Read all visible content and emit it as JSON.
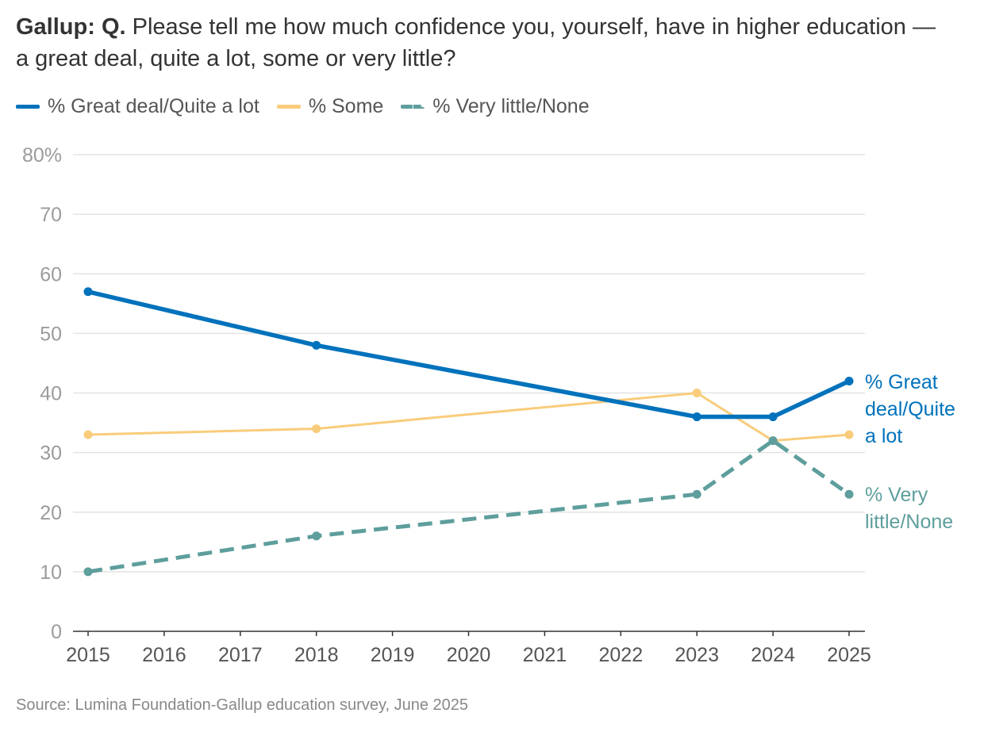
{
  "title": {
    "prefix": "Gallup: Q.",
    "text": "Please tell me how much confidence you, yourself, have in higher education — a great deal, quite a lot, some or very little?"
  },
  "legend": [
    {
      "label": "% Great deal/Quite a lot",
      "color": "#0072bc",
      "style": "solid"
    },
    {
      "label": "% Some",
      "color": "#f9cc7c",
      "style": "solid"
    },
    {
      "label": "% Very little/None",
      "color": "#5e9e9c",
      "style": "dashed"
    }
  ],
  "source": "Source: Lumina Foundation-Gallup education survey, June 2025",
  "chart_data": {
    "type": "line",
    "title": "Gallup: Q. Please tell me how much confidence you, yourself, have in higher education — a great deal, quite a lot, some or very little?",
    "xlabel": "",
    "ylabel": "",
    "xlim": [
      2015,
      2025
    ],
    "ylim": [
      0,
      80
    ],
    "x_ticks": [
      2015,
      2016,
      2017,
      2018,
      2019,
      2020,
      2021,
      2022,
      2023,
      2024,
      2025
    ],
    "y_ticks": [
      0,
      10,
      20,
      30,
      40,
      50,
      60,
      70,
      80
    ],
    "y_tick_labels": [
      "0",
      "10",
      "20",
      "30",
      "40",
      "50",
      "60",
      "70",
      "80%"
    ],
    "grid": true,
    "series": [
      {
        "name": "% Great deal/Quite a lot",
        "color": "#0072bc",
        "dashed": false,
        "x": [
          2015,
          2018,
          2023,
          2024,
          2025
        ],
        "values": [
          57,
          48,
          36,
          36,
          42
        ],
        "end_label": [
          "% Great",
          "deal/Quite",
          "a lot"
        ]
      },
      {
        "name": "% Some",
        "color": "#f9cc7c",
        "dashed": false,
        "x": [
          2015,
          2018,
          2023,
          2024,
          2025
        ],
        "values": [
          33,
          34,
          40,
          32,
          33
        ],
        "end_label": []
      },
      {
        "name": "% Very little/None",
        "color": "#5e9e9c",
        "dashed": true,
        "x": [
          2015,
          2018,
          2023,
          2024,
          2025
        ],
        "values": [
          10,
          16,
          23,
          32,
          23
        ],
        "end_label": [
          "% Very",
          "little/None"
        ]
      }
    ]
  }
}
